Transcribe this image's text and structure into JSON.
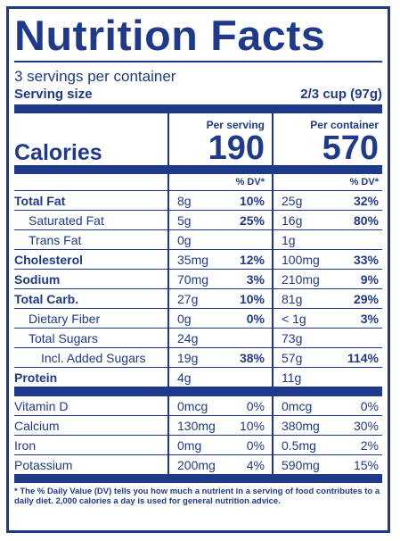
{
  "title": "Nutrition Facts",
  "servings_per_container": "3 servings per container",
  "serving_size": {
    "label": "Serving size",
    "value": "2/3 cup (97g)"
  },
  "columns": {
    "per_serving": "Per serving",
    "per_container": "Per container",
    "dv": "% DV*"
  },
  "calories": {
    "label": "Calories",
    "per_serving": "190",
    "per_container": "570"
  },
  "nutrients": [
    {
      "name": "Total Fat",
      "style": "bold",
      "ps_amt": "8g",
      "ps_dv": "10%",
      "pc_amt": "25g",
      "pc_dv": "32%"
    },
    {
      "name": "Saturated Fat",
      "style": "ind1",
      "ps_amt": "5g",
      "ps_dv": "25%",
      "pc_amt": "16g",
      "pc_dv": "80%"
    },
    {
      "name": "Trans Fat",
      "style": "ind1",
      "ps_amt": "0g",
      "ps_dv": "",
      "pc_amt": "1g",
      "pc_dv": ""
    },
    {
      "name": "Cholesterol",
      "style": "bold",
      "ps_amt": "35mg",
      "ps_dv": "12%",
      "pc_amt": "100mg",
      "pc_dv": "33%"
    },
    {
      "name": "Sodium",
      "style": "bold",
      "ps_amt": "70mg",
      "ps_dv": "3%",
      "pc_amt": "210mg",
      "pc_dv": "9%"
    },
    {
      "name": "Total Carb.",
      "style": "bold",
      "ps_amt": "27g",
      "ps_dv": "10%",
      "pc_amt": "81g",
      "pc_dv": "29%"
    },
    {
      "name": "Dietary Fiber",
      "style": "ind1",
      "ps_amt": "0g",
      "ps_dv": "0%",
      "pc_amt": "< 1g",
      "pc_dv": "3%"
    },
    {
      "name": "Total Sugars",
      "style": "ind1",
      "ps_amt": "24g",
      "ps_dv": "",
      "pc_amt": "73g",
      "pc_dv": ""
    },
    {
      "name": "Incl. Added Sugars",
      "style": "ind2",
      "ps_amt": "19g",
      "ps_dv": "38%",
      "pc_amt": "57g",
      "pc_dv": "114%"
    },
    {
      "name": "Protein",
      "style": "bold",
      "ps_amt": "4g",
      "ps_dv": "",
      "pc_amt": "11g",
      "pc_dv": ""
    }
  ],
  "vitamins": [
    {
      "name": "Vitamin D",
      "ps_amt": "0mcg",
      "ps_dv": "0%",
      "pc_amt": "0mcg",
      "pc_dv": "0%"
    },
    {
      "name": "Calcium",
      "ps_amt": "130mg",
      "ps_dv": "10%",
      "pc_amt": "380mg",
      "pc_dv": "30%"
    },
    {
      "name": "Iron",
      "ps_amt": "0mg",
      "ps_dv": "0%",
      "pc_amt": "0.5mg",
      "pc_dv": "2%"
    },
    {
      "name": "Potassium",
      "ps_amt": "200mg",
      "ps_dv": "4%",
      "pc_amt": "590mg",
      "pc_dv": "15%"
    }
  ],
  "footnote": "* The % Daily Value (DV) tells you how much a nutrient in a serving of food contributes to a daily diet. 2,000 calories a day is used for general nutrition advice.",
  "colors": {
    "ink": "#1f3a8a",
    "background": "#ffffff"
  }
}
